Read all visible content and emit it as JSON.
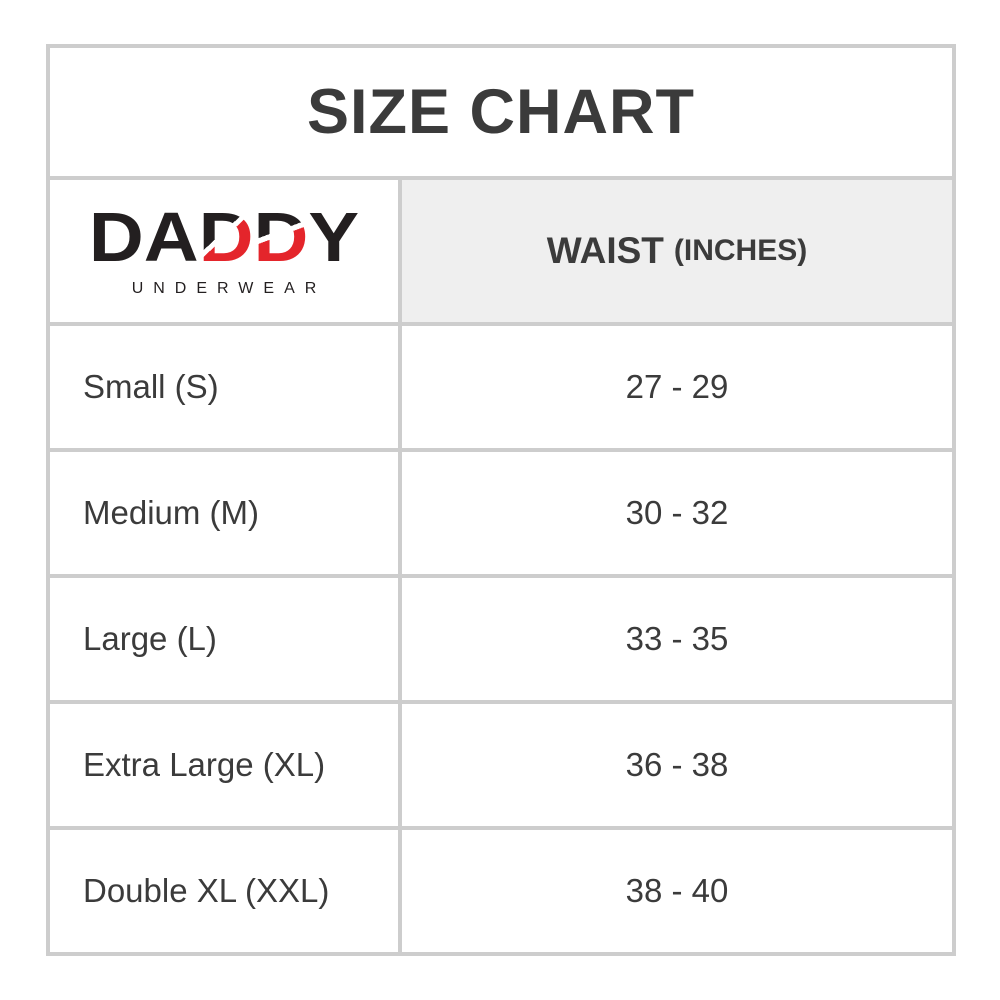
{
  "colors": {
    "brand_red": "#e4252b",
    "brand_black": "#231f20",
    "grid_border": "#cdcdcd",
    "header_cell_bg": "#efefef",
    "text": "#3b3b3b",
    "background": "#ffffff"
  },
  "table": {
    "title": "SIZE CHART"
  },
  "brand": {
    "letters": [
      "D",
      "A",
      "D",
      "D",
      "Y"
    ],
    "subtext": "UNDERWEAR"
  },
  "header": {
    "waist_label": "WAIST",
    "waist_unit": "(INCHES)"
  },
  "rows": [
    {
      "size": "Small (S)",
      "waist": "27 - 29"
    },
    {
      "size": "Medium (M)",
      "waist": "30 - 32"
    },
    {
      "size": "Large (L)",
      "waist": "33 - 35"
    },
    {
      "size": "Extra Large (XL)",
      "waist": "36 - 38"
    },
    {
      "size": "Double XL (XXL)",
      "waist": "38 - 40"
    }
  ],
  "chart_data": {
    "type": "table",
    "title": "SIZE CHART",
    "columns": [
      "Size (DADDY UNDERWEAR)",
      "WAIST (INCHES)"
    ],
    "rows": [
      [
        "Small (S)",
        "27 - 29"
      ],
      [
        "Medium (M)",
        "30 - 32"
      ],
      [
        "Large (L)",
        "33 - 35"
      ],
      [
        "Extra Large (XL)",
        "36 - 38"
      ],
      [
        "Double XL (XXL)",
        "38 - 40"
      ]
    ]
  }
}
